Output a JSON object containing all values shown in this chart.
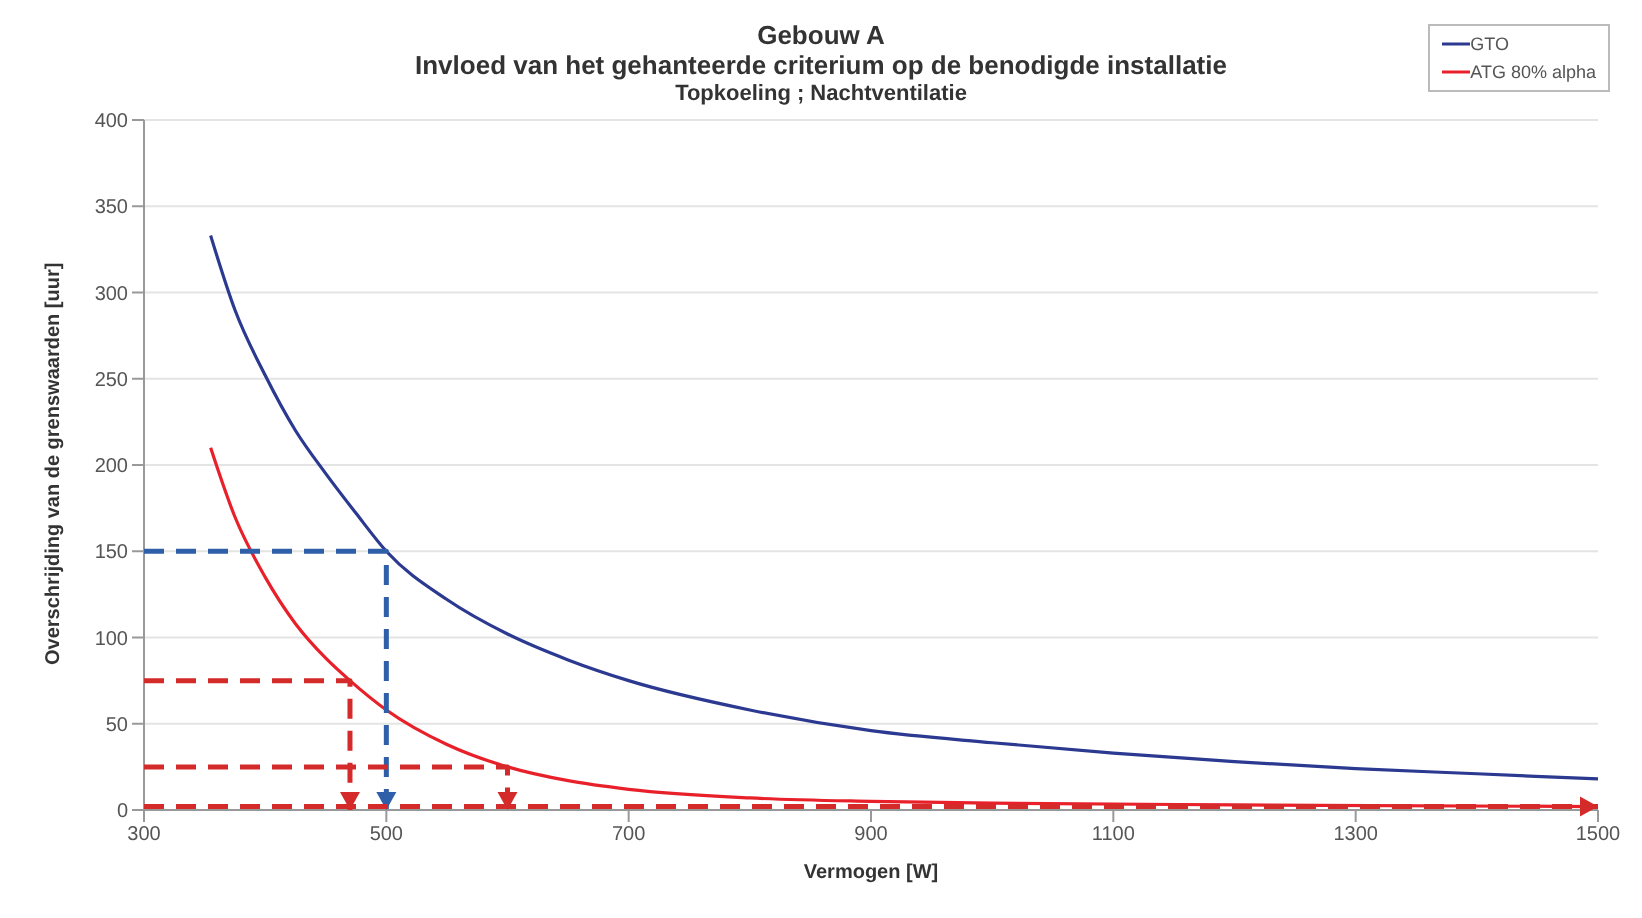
{
  "chart_data": {
    "type": "line",
    "title": "Gebouw A",
    "subtitle": "Invloed van het gehanteerde criterium op de benodigde installatie\nTopkoeling ; Nachtventilatie",
    "xlabel": "Vermogen [W]",
    "ylabel": "Overschrijding van de grenswaarden [uur]",
    "xlim": [
      300,
      1500
    ],
    "xticks": [
      300,
      500,
      700,
      900,
      1100,
      1300,
      1500
    ],
    "ylim": [
      0,
      400
    ],
    "yticks": [
      0,
      50,
      100,
      150,
      200,
      250,
      300,
      350,
      400
    ],
    "grid": "y",
    "legend": "top right",
    "marker": "none",
    "line_style": "solid",
    "series": [
      {
        "name": "GTO",
        "color": "#2b3990",
        "x": [
          355,
          375,
          400,
          425,
          450,
          475,
          500,
          550,
          600,
          650,
          700,
          800,
          900,
          1000,
          1100,
          1200,
          1300,
          1400,
          1500
        ],
        "values": [
          333,
          290,
          252,
          220,
          195,
          172,
          150,
          122,
          102,
          87,
          75,
          58,
          46,
          39,
          33,
          28,
          24,
          21,
          18
        ]
      },
      {
        "name": "ATG 80% alpha",
        "color": "#e8202a",
        "x": [
          355,
          375,
          400,
          425,
          450,
          470,
          500,
          550,
          600,
          650,
          700,
          800,
          900,
          1000,
          1200,
          1500
        ],
        "values": [
          210,
          170,
          135,
          108,
          88,
          75,
          58,
          38,
          25,
          17,
          12,
          7,
          5,
          4,
          3,
          2
        ]
      },
      {
        "color": "#2e5fa8",
        "line_style": "dashed",
        "x": [
          300,
          500,
          500
        ],
        "values": [
          150,
          150,
          0
        ]
      },
      {
        "color": "#d42a2a",
        "line_style": "dashed",
        "x": [
          300,
          470,
          470
        ],
        "values": [
          75,
          75,
          0
        ]
      },
      {
        "color": "#d42a2a",
        "line_style": "dashed",
        "x": [
          300,
          600,
          600
        ],
        "values": [
          25,
          25,
          0
        ]
      },
      {
        "color": "#d42a2a",
        "line_style": "dashed",
        "x": [
          300,
          1500
        ],
        "values": [
          2,
          2
        ]
      }
    ]
  }
}
